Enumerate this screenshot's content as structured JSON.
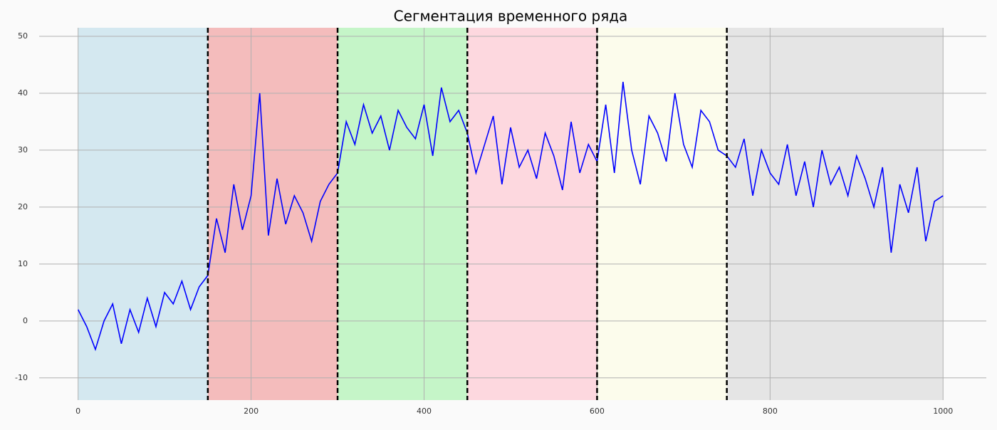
{
  "chart_data": {
    "type": "line",
    "title": "Сегментация временного ряда",
    "x": [
      0,
      10,
      20,
      30,
      40,
      50,
      60,
      70,
      80,
      90,
      100,
      110,
      120,
      130,
      140,
      150,
      160,
      170,
      180,
      190,
      200,
      210,
      220,
      230,
      240,
      250,
      260,
      270,
      280,
      290,
      300,
      310,
      320,
      330,
      340,
      350,
      360,
      370,
      380,
      390,
      400,
      410,
      420,
      430,
      440,
      450,
      460,
      470,
      480,
      490,
      500,
      510,
      520,
      530,
      540,
      550,
      560,
      570,
      580,
      590,
      600,
      610,
      620,
      630,
      640,
      650,
      660,
      670,
      680,
      690,
      700,
      710,
      720,
      730,
      740,
      750,
      760,
      770,
      780,
      790,
      800,
      810,
      820,
      830,
      840,
      850,
      860,
      870,
      880,
      890,
      900,
      910,
      920,
      930,
      940,
      950,
      960,
      970,
      980,
      990,
      1000
    ],
    "series": [
      {
        "color": "#0000ff",
        "values": [
          2,
          -1,
          -5,
          0,
          3,
          -4,
          2,
          -2,
          4,
          -1,
          5,
          3,
          7,
          2,
          6,
          8,
          18,
          12,
          24,
          16,
          22,
          40,
          15,
          25,
          17,
          22,
          19,
          14,
          21,
          24,
          26,
          35,
          31,
          38,
          33,
          36,
          30,
          37,
          34,
          32,
          38,
          29,
          41,
          35,
          37,
          33,
          26,
          31,
          36,
          24,
          34,
          27,
          30,
          25,
          33,
          29,
          23,
          35,
          26,
          31,
          28,
          38,
          26,
          42,
          30,
          24,
          36,
          33,
          28,
          40,
          31,
          27,
          37,
          35,
          30,
          29,
          27,
          32,
          22,
          30,
          26,
          24,
          31,
          22,
          28,
          20,
          30,
          24,
          27,
          22,
          29,
          25,
          20,
          27,
          12,
          24,
          19,
          27,
          14,
          21,
          22
        ]
      }
    ],
    "segments": [
      {
        "start": 0,
        "end": 150,
        "color": "#d4e8f0"
      },
      {
        "start": 150,
        "end": 300,
        "color": "#f4bcbc"
      },
      {
        "start": 300,
        "end": 450,
        "color": "#c5f5c8"
      },
      {
        "start": 450,
        "end": 600,
        "color": "#fdd8df"
      },
      {
        "start": 600,
        "end": 750,
        "color": "#fcfcec"
      },
      {
        "start": 750,
        "end": 1000,
        "color": "#e5e5e5"
      }
    ],
    "breakpoints": [
      150,
      300,
      450,
      600,
      750
    ],
    "xlim": [
      -45,
      1050
    ],
    "ylim": [
      -13.9,
      51.5
    ],
    "xticks": [
      0,
      200,
      400,
      600,
      800,
      1000
    ],
    "yticks": [
      -10,
      0,
      10,
      20,
      30,
      40,
      50
    ],
    "grid": true
  }
}
